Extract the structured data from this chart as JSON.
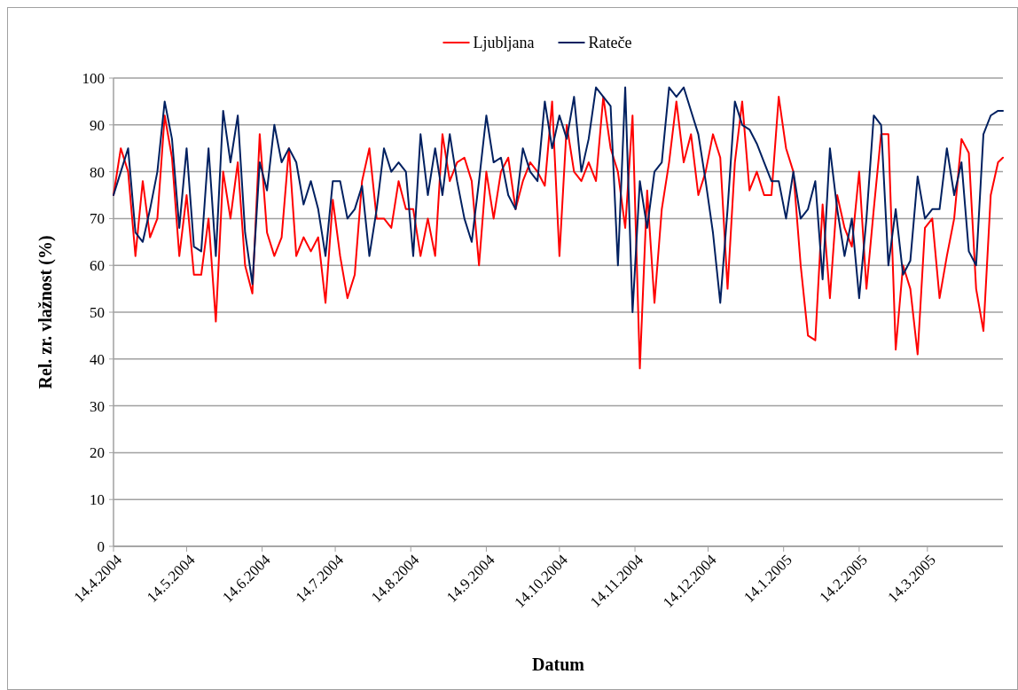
{
  "chart_data": {
    "type": "line",
    "xlabel": "Datum",
    "ylabel": "Rel. zr. vlažnost (%)",
    "x": [
      "2004-04-14",
      "2004-04-17",
      "2004-04-20",
      "2004-04-23",
      "2004-04-26",
      "2004-04-29",
      "2004-05-02",
      "2004-05-05",
      "2004-05-08",
      "2004-05-11",
      "2004-05-14",
      "2004-05-17",
      "2004-05-20",
      "2004-05-23",
      "2004-05-26",
      "2004-05-29",
      "2004-06-01",
      "2004-06-04",
      "2004-06-07",
      "2004-06-10",
      "2004-06-13",
      "2004-06-16",
      "2004-06-19",
      "2004-06-22",
      "2004-06-25",
      "2004-06-28",
      "2004-07-01",
      "2004-07-04",
      "2004-07-07",
      "2004-07-10",
      "2004-07-13",
      "2004-07-16",
      "2004-07-19",
      "2004-07-22",
      "2004-07-25",
      "2004-07-28",
      "2004-07-31",
      "2004-08-03",
      "2004-08-06",
      "2004-08-09",
      "2004-08-12",
      "2004-08-15",
      "2004-08-18",
      "2004-08-21",
      "2004-08-24",
      "2004-08-27",
      "2004-08-30",
      "2004-09-02",
      "2004-09-05",
      "2004-09-08",
      "2004-09-11",
      "2004-09-14",
      "2004-09-17",
      "2004-09-20",
      "2004-09-23",
      "2004-09-26",
      "2004-09-29",
      "2004-10-02",
      "2004-10-05",
      "2004-10-08",
      "2004-10-11",
      "2004-10-14",
      "2004-10-17",
      "2004-10-20",
      "2004-10-23",
      "2004-10-26",
      "2004-10-29",
      "2004-11-01",
      "2004-11-04",
      "2004-11-07",
      "2004-11-10",
      "2004-11-13",
      "2004-11-16",
      "2004-11-19",
      "2004-11-22",
      "2004-11-25",
      "2004-11-28",
      "2004-12-01",
      "2004-12-04",
      "2004-12-07",
      "2004-12-10",
      "2004-12-13",
      "2004-12-16",
      "2004-12-19",
      "2004-12-22",
      "2004-12-25",
      "2004-12-28",
      "2004-12-31",
      "2005-01-03",
      "2005-01-06",
      "2005-01-09",
      "2005-01-12",
      "2005-01-15",
      "2005-01-18",
      "2005-01-21",
      "2005-01-24",
      "2005-01-27",
      "2005-01-30",
      "2005-02-02",
      "2005-02-05",
      "2005-02-08",
      "2005-02-11",
      "2005-02-14",
      "2005-02-17",
      "2005-02-20",
      "2005-02-23",
      "2005-02-26",
      "2005-03-01",
      "2005-03-04",
      "2005-03-07",
      "2005-03-10",
      "2005-03-13",
      "2005-03-16",
      "2005-03-19",
      "2005-03-22",
      "2005-03-25",
      "2005-03-28",
      "2005-03-31",
      "2005-04-03",
      "2005-04-06",
      "2005-04-09",
      "2005-04-12",
      "2005-04-14"
    ],
    "series": [
      {
        "name": "Ljubljana",
        "color": "#ff0000",
        "values": [
          75,
          85,
          80,
          62,
          78,
          66,
          70,
          92,
          83,
          62,
          75,
          58,
          58,
          70,
          48,
          80,
          70,
          82,
          60,
          54,
          88,
          67,
          62,
          66,
          85,
          62,
          66,
          63,
          66,
          52,
          74,
          62,
          53,
          58,
          78,
          85,
          70,
          70,
          68,
          78,
          72,
          72,
          62,
          70,
          62,
          88,
          78,
          82,
          83,
          78,
          60,
          80,
          70,
          80,
          83,
          72,
          78,
          82,
          80,
          77,
          95,
          62,
          90,
          80,
          78,
          82,
          78,
          96,
          85,
          80,
          68,
          92,
          38,
          76,
          52,
          72,
          82,
          95,
          82,
          88,
          75,
          80,
          88,
          83,
          55,
          82,
          95,
          76,
          80,
          75,
          75,
          96,
          85,
          80,
          60,
          45,
          44,
          73,
          53,
          75,
          68,
          64,
          80,
          55,
          72,
          88,
          88,
          42,
          60,
          55,
          41,
          68,
          70,
          53,
          62,
          70,
          87,
          84,
          55,
          46,
          75,
          82,
          83
        ]
      },
      {
        "name": "Rateče",
        "color": "#002060",
        "values": [
          75,
          80,
          85,
          67,
          65,
          72,
          80,
          95,
          87,
          68,
          85,
          64,
          63,
          85,
          62,
          93,
          82,
          92,
          67,
          56,
          82,
          76,
          90,
          82,
          85,
          82,
          73,
          78,
          72,
          62,
          78,
          78,
          70,
          72,
          77,
          62,
          72,
          85,
          80,
          82,
          80,
          62,
          88,
          75,
          85,
          75,
          88,
          78,
          70,
          65,
          78,
          92,
          82,
          83,
          75,
          72,
          85,
          80,
          78,
          95,
          85,
          92,
          87,
          96,
          80,
          87,
          98,
          96,
          94,
          60,
          98,
          50,
          78,
          68,
          80,
          82,
          98,
          96,
          98,
          93,
          88,
          78,
          67,
          52,
          72,
          95,
          90,
          89,
          86,
          82,
          78,
          78,
          70,
          80,
          70,
          72,
          78,
          57,
          85,
          72,
          62,
          70,
          53,
          70,
          92,
          90,
          60,
          72,
          58,
          61,
          79,
          70,
          72,
          72,
          85,
          75,
          82,
          63,
          60,
          88,
          92,
          93,
          93
        ]
      }
    ],
    "xlim": [
      "2004-04-14",
      "2005-04-14"
    ],
    "xticks": [
      {
        "value": "2004-04-14",
        "label": "14.4.2004"
      },
      {
        "value": "2004-05-14",
        "label": "14.5.2004"
      },
      {
        "value": "2004-06-14",
        "label": "14.6.2004"
      },
      {
        "value": "2004-07-14",
        "label": "14.7.2004"
      },
      {
        "value": "2004-08-14",
        "label": "14.8.2004"
      },
      {
        "value": "2004-09-14",
        "label": "14.9.2004"
      },
      {
        "value": "2004-10-14",
        "label": "14.10.2004"
      },
      {
        "value": "2004-11-14",
        "label": "14.11.2004"
      },
      {
        "value": "2004-12-14",
        "label": "14.12.2004"
      },
      {
        "value": "2005-01-14",
        "label": "14.1.2005"
      },
      {
        "value": "2005-02-14",
        "label": "14.2.2005"
      },
      {
        "value": "2005-03-14",
        "label": "14.3.2005"
      }
    ],
    "ylim": [
      0,
      100
    ],
    "yticks": [
      0,
      10,
      20,
      30,
      40,
      50,
      60,
      70,
      80,
      90,
      100
    ],
    "grid": "y",
    "legend": "top",
    "marker": "none",
    "line_style": "solid"
  }
}
